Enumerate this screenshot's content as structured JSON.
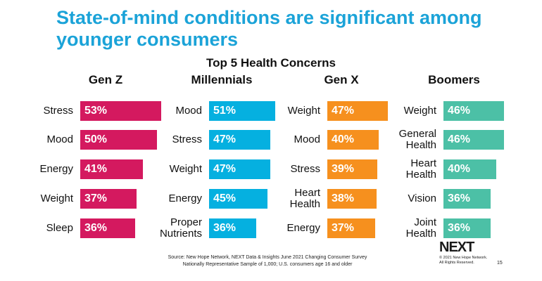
{
  "title": "State-of-mind conditions are significant among younger consumers",
  "chart_data": {
    "type": "bar",
    "title": "Top 5 Health Concerns",
    "panels": [
      {
        "name": "Gen Z",
        "color": "#d4195f",
        "categories": [
          "Stress",
          "Mood",
          "Energy",
          "Weight",
          "Sleep"
        ],
        "values": [
          53,
          50,
          41,
          37,
          36
        ],
        "labels": [
          "53%",
          "50%",
          "41%",
          "37%",
          "36%"
        ]
      },
      {
        "name": "Millennials",
        "color": "#05b0e0",
        "categories": [
          "Mood",
          "Stress",
          "Weight",
          "Energy",
          "Proper Nutrients"
        ],
        "values": [
          51,
          47,
          47,
          45,
          36
        ],
        "labels": [
          "51%",
          "47%",
          "47%",
          "45%",
          "36%"
        ]
      },
      {
        "name": "Gen X",
        "color": "#f6901e",
        "categories": [
          "Weight",
          "Mood",
          "Stress",
          "Heart Health",
          "Energy"
        ],
        "values": [
          47,
          40,
          39,
          38,
          37
        ],
        "labels": [
          "47%",
          "40%",
          "39%",
          "38%",
          "37%"
        ]
      },
      {
        "name": "Boomers",
        "color": "#4cc0a6",
        "categories": [
          "Weight",
          "General Health",
          "Heart Health",
          "Vision",
          "Joint Health"
        ],
        "values": [
          46,
          46,
          40,
          36,
          36
        ],
        "labels": [
          "46%",
          "46%",
          "40%",
          "36%",
          "36%"
        ]
      }
    ]
  },
  "source": [
    "Source: New Hope Network, NEXT Data & Insights June 2021 Changing Consumer Survey",
    "Nationally Representative Sample of 1,000; U.S. consumers age 16 and older"
  ],
  "logo": {
    "text": "NEXT",
    "copyright": [
      "© 2021 New Hope Network.",
      "All Rights Reserved."
    ]
  },
  "page_number": "15"
}
